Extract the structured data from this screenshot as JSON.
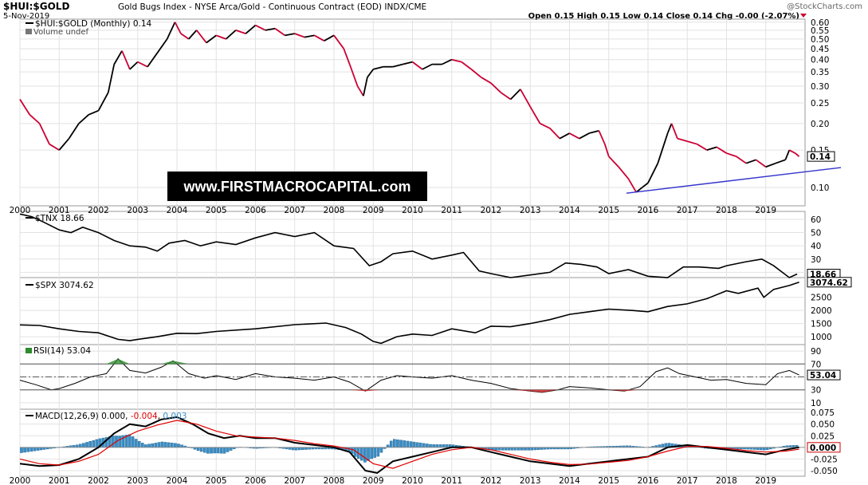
{
  "header": {
    "symbol": "$HUI:$GOLD",
    "description": "Gold Bugs Index - NYSE Arca/Gold - Continuous Contract (EOD) INDX/CME",
    "credit": "@StockCharts.com",
    "date": "5-Nov-2019",
    "ohlc": "Open 0.15  High 0.15  Low 0.14  Close 0.14  Chg -0.00 (-2.07%)"
  },
  "watermark": "www.FIRSTMACROCAPITAL.com",
  "x_axis": {
    "years": [
      "2000",
      "2001",
      "2002",
      "2003",
      "2004",
      "2005",
      "2006",
      "2007",
      "2008",
      "2009",
      "2010",
      "2011",
      "2012",
      "2013",
      "2014",
      "2015",
      "2016",
      "2017",
      "2018",
      "2019"
    ]
  },
  "colors": {
    "price_line": "#000000",
    "price_down": "#cc0033",
    "trendline": "#3333cc",
    "macd_signal": "#e00000",
    "histogram": "#3a8fc8",
    "rsi_shade_over": "#2e8b2e",
    "rsi_shade_under": "#cc2222"
  },
  "chart_data": [
    {
      "type": "line",
      "legend": "$HUI:$GOLD (Monthly) 0.14",
      "volume_label": "Volume undef",
      "last_value": "0.14",
      "y_ticks": [
        0.1,
        0.15,
        0.2,
        0.25,
        0.3,
        0.35,
        0.4,
        0.45,
        0.5,
        0.55,
        0.6
      ],
      "ylim": [
        0.082,
        0.62
      ],
      "log_scale": true,
      "series": [
        {
          "x": [
            2000.0,
            2000.25,
            2000.5,
            2000.75,
            2001.0,
            2001.25,
            2001.5,
            2001.75,
            2002.0,
            2002.25,
            2002.4,
            2002.6,
            2002.8,
            2003.0,
            2003.25,
            2003.5,
            2003.75,
            2003.95,
            2004.1,
            2004.3,
            2004.5,
            2004.75,
            2005.0,
            2005.25,
            2005.5,
            2005.75,
            2006.0,
            2006.25,
            2006.5,
            2006.75,
            2007.0,
            2007.25,
            2007.5,
            2007.75,
            2008.0,
            2008.25,
            2008.4,
            2008.6,
            2008.75,
            2008.85,
            2009.0,
            2009.25,
            2009.5,
            2009.75,
            2010.0,
            2010.25,
            2010.5,
            2010.75,
            2011.0,
            2011.25,
            2011.5,
            2011.75,
            2012.0,
            2012.25,
            2012.5,
            2012.75,
            2013.0,
            2013.25,
            2013.5,
            2013.75,
            2014.0,
            2014.25,
            2014.5,
            2014.75,
            2014.9,
            2015.0,
            2015.25,
            2015.5,
            2015.7,
            2015.85,
            2016.0,
            2016.25,
            2016.5,
            2016.6,
            2016.75,
            2017.0,
            2017.25,
            2017.5,
            2017.75,
            2018.0,
            2018.25,
            2018.5,
            2018.75,
            2019.0,
            2019.25,
            2019.5,
            2019.6,
            2019.75,
            2019.85
          ],
          "values": [
            0.26,
            0.22,
            0.2,
            0.16,
            0.15,
            0.17,
            0.2,
            0.22,
            0.23,
            0.28,
            0.38,
            0.44,
            0.36,
            0.39,
            0.37,
            0.43,
            0.5,
            0.6,
            0.53,
            0.5,
            0.55,
            0.48,
            0.52,
            0.5,
            0.55,
            0.53,
            0.58,
            0.55,
            0.56,
            0.52,
            0.53,
            0.51,
            0.52,
            0.49,
            0.52,
            0.45,
            0.38,
            0.3,
            0.27,
            0.33,
            0.36,
            0.37,
            0.37,
            0.38,
            0.39,
            0.36,
            0.38,
            0.38,
            0.4,
            0.39,
            0.36,
            0.33,
            0.31,
            0.28,
            0.26,
            0.29,
            0.24,
            0.2,
            0.19,
            0.17,
            0.18,
            0.17,
            0.18,
            0.185,
            0.16,
            0.14,
            0.125,
            0.11,
            0.095,
            0.1,
            0.105,
            0.13,
            0.18,
            0.2,
            0.17,
            0.165,
            0.16,
            0.15,
            0.155,
            0.145,
            0.14,
            0.13,
            0.135,
            0.125,
            0.13,
            0.135,
            0.15,
            0.145,
            0.14
          ]
        }
      ],
      "trendline": {
        "x": [
          2015.45,
          2020.0
        ],
        "values": [
          0.094,
          0.122
        ]
      }
    },
    {
      "type": "line",
      "legend": "$TNX 18.66",
      "last_value": "18.66",
      "y_ticks": [
        20,
        30,
        40,
        50,
        60
      ],
      "ylim": [
        16,
        66
      ],
      "series": [
        {
          "x": [
            2000.0,
            2000.3,
            2000.6,
            2001.0,
            2001.3,
            2001.6,
            2002.0,
            2002.4,
            2002.8,
            2003.2,
            2003.5,
            2003.8,
            2004.2,
            2004.6,
            2005.0,
            2005.5,
            2006.0,
            2006.5,
            2007.0,
            2007.5,
            2008.0,
            2008.5,
            2008.9,
            2009.2,
            2009.5,
            2010.0,
            2010.5,
            2011.0,
            2011.3,
            2011.7,
            2012.0,
            2012.5,
            2013.0,
            2013.5,
            2013.9,
            2014.3,
            2014.7,
            2015.0,
            2015.5,
            2016.0,
            2016.5,
            2016.9,
            2017.3,
            2017.8,
            2018.0,
            2018.5,
            2018.9,
            2019.2,
            2019.6,
            2019.8
          ],
          "values": [
            64,
            62,
            58,
            52,
            50,
            54,
            50,
            44,
            40,
            39,
            36,
            42,
            44,
            40,
            43,
            41,
            46,
            50,
            47,
            50,
            40,
            38,
            25,
            28,
            34,
            36,
            30,
            33,
            35,
            21,
            19,
            16,
            18,
            20,
            27,
            26,
            24,
            19,
            22,
            17,
            16,
            24,
            24,
            23,
            25,
            28,
            30,
            25,
            16,
            18.7
          ]
        }
      ]
    },
    {
      "type": "line",
      "legend": "$SPX 3074.62",
      "last_value": "3074.62",
      "y_ticks": [
        1000,
        1500,
        2000,
        2500
      ],
      "ylim": [
        700,
        3250
      ],
      "series": [
        {
          "x": [
            2000.0,
            2000.5,
            2001.0,
            2001.5,
            2002.0,
            2002.5,
            2002.8,
            2003.0,
            2003.5,
            2004.0,
            2004.5,
            2005.0,
            2006.0,
            2007.0,
            2007.8,
            2008.3,
            2008.7,
            2009.0,
            2009.2,
            2009.6,
            2010.0,
            2010.5,
            2011.0,
            2011.6,
            2012.0,
            2012.5,
            2013.0,
            2013.5,
            2014.0,
            2014.5,
            2015.0,
            2015.6,
            2016.0,
            2016.5,
            2017.0,
            2017.5,
            2018.0,
            2018.3,
            2018.8,
            2018.95,
            2019.2,
            2019.6,
            2019.85
          ],
          "values": [
            1450,
            1430,
            1300,
            1200,
            1150,
            900,
            850,
            900,
            1000,
            1130,
            1120,
            1200,
            1300,
            1460,
            1520,
            1350,
            1100,
            820,
            750,
            1000,
            1100,
            1050,
            1300,
            1150,
            1400,
            1380,
            1500,
            1650,
            1850,
            1950,
            2050,
            2000,
            1950,
            2150,
            2250,
            2450,
            2750,
            2650,
            2850,
            2500,
            2800,
            2950,
            3075
          ]
        }
      ]
    },
    {
      "type": "line",
      "legend": "RSI(14) 53.04",
      "last_value": "53.04",
      "y_ticks": [
        10,
        30,
        50,
        70,
        90
      ],
      "ylim": [
        0,
        100
      ],
      "series": [
        {
          "x": [
            2000.0,
            2000.4,
            2000.8,
            2001.0,
            2001.4,
            2001.8,
            2002.2,
            2002.5,
            2002.8,
            2003.2,
            2003.6,
            2003.9,
            2004.3,
            2004.7,
            2005.0,
            2005.5,
            2006.0,
            2006.5,
            2007.0,
            2007.5,
            2008.0,
            2008.4,
            2008.8,
            2009.2,
            2009.6,
            2010.0,
            2010.5,
            2011.0,
            2011.5,
            2012.0,
            2012.5,
            2013.0,
            2013.3,
            2013.7,
            2014.0,
            2014.5,
            2015.0,
            2015.4,
            2015.8,
            2016.2,
            2016.5,
            2016.8,
            2017.2,
            2017.6,
            2018.0,
            2018.5,
            2019.0,
            2019.3,
            2019.6,
            2019.85
          ],
          "values": [
            45,
            38,
            30,
            32,
            40,
            50,
            55,
            78,
            60,
            56,
            65,
            75,
            55,
            48,
            52,
            46,
            55,
            50,
            48,
            45,
            50,
            42,
            28,
            45,
            52,
            50,
            48,
            52,
            45,
            40,
            32,
            28,
            26,
            30,
            35,
            33,
            30,
            28,
            35,
            58,
            64,
            55,
            50,
            45,
            46,
            40,
            38,
            55,
            60,
            53
          ]
        }
      ]
    },
    {
      "type": "line",
      "legend_macd": "MACD(12,26,9) 0.000",
      "legend_signal": "-0.004",
      "legend_hist": "0.003",
      "last_value": "0.000",
      "y_ticks": [
        -0.05,
        -0.025,
        0.0,
        0.025,
        0.05,
        0.075
      ],
      "ylim": [
        -0.062,
        0.082
      ],
      "series": [
        {
          "name": "MACD(12,26,9)",
          "x": [
            2000.0,
            2000.5,
            2001.0,
            2001.5,
            2002.0,
            2002.4,
            2002.8,
            2003.2,
            2003.6,
            2004.0,
            2004.4,
            2004.8,
            2005.2,
            2005.6,
            2006.0,
            2006.5,
            2007.0,
            2007.5,
            2008.0,
            2008.4,
            2008.8,
            2009.1,
            2009.5,
            2010.0,
            2010.5,
            2011.0,
            2011.5,
            2012.0,
            2012.5,
            2013.0,
            2013.5,
            2014.0,
            2014.5,
            2015.0,
            2015.5,
            2016.0,
            2016.5,
            2017.0,
            2017.5,
            2018.0,
            2018.5,
            2019.0,
            2019.5,
            2019.85
          ],
          "values": [
            -0.035,
            -0.04,
            -0.038,
            -0.025,
            0.0,
            0.03,
            0.05,
            0.045,
            0.06,
            0.065,
            0.05,
            0.03,
            0.02,
            0.025,
            0.02,
            0.02,
            0.01,
            0.005,
            0.0,
            -0.01,
            -0.05,
            -0.055,
            -0.03,
            -0.02,
            -0.01,
            0.0,
            0.0,
            -0.01,
            -0.02,
            -0.03,
            -0.035,
            -0.04,
            -0.035,
            -0.03,
            -0.025,
            -0.02,
            0.0,
            0.005,
            0.0,
            -0.005,
            -0.01,
            -0.015,
            -0.005,
            0.0
          ]
        },
        {
          "name": "Signal",
          "x": [
            2000.0,
            2000.5,
            2001.0,
            2001.5,
            2002.0,
            2002.5,
            2003.0,
            2003.5,
            2004.0,
            2004.5,
            2005.0,
            2005.5,
            2006.0,
            2006.5,
            2007.0,
            2007.5,
            2008.0,
            2008.5,
            2009.0,
            2009.5,
            2010.0,
            2010.5,
            2011.0,
            2011.5,
            2012.0,
            2012.5,
            2013.0,
            2013.5,
            2014.0,
            2014.5,
            2015.0,
            2015.5,
            2016.0,
            2016.5,
            2017.0,
            2017.5,
            2018.0,
            2018.5,
            2019.0,
            2019.5,
            2019.85
          ],
          "values": [
            -0.025,
            -0.035,
            -0.038,
            -0.03,
            -0.015,
            0.015,
            0.035,
            0.048,
            0.058,
            0.05,
            0.035,
            0.025,
            0.022,
            0.02,
            0.015,
            0.008,
            0.003,
            -0.005,
            -0.035,
            -0.045,
            -0.03,
            -0.015,
            -0.005,
            0.0,
            -0.005,
            -0.015,
            -0.025,
            -0.032,
            -0.037,
            -0.036,
            -0.032,
            -0.028,
            -0.02,
            -0.008,
            0.002,
            0.002,
            -0.002,
            -0.007,
            -0.01,
            -0.008,
            -0.004
          ]
        }
      ],
      "histogram": {
        "x_start": 2000.0,
        "x_step": 0.0833,
        "values_note": "derived"
      }
    }
  ]
}
